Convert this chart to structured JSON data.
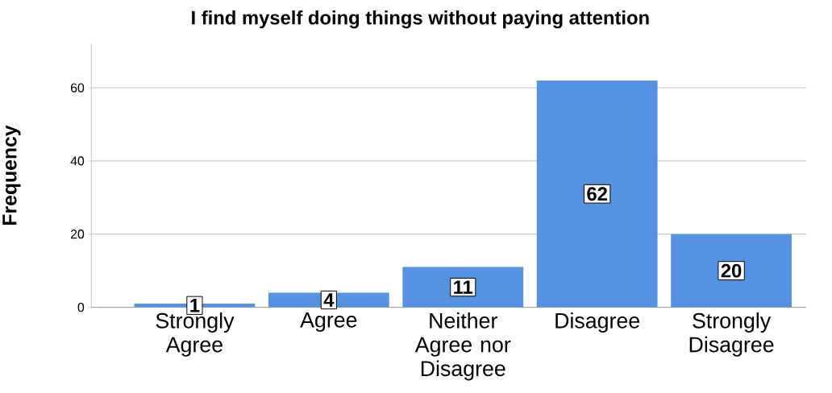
{
  "chart_data": {
    "type": "bar",
    "title": "I find myself doing things without paying attention",
    "ylabel": "Frequency",
    "categories": [
      "Strongly Agree",
      "Agree",
      "Neither Agree nor Disagree",
      "Disagree",
      "Strongly Disagree"
    ],
    "values": [
      1,
      4,
      11,
      62,
      20
    ],
    "color": "#5592e2",
    "ylim": [
      0,
      72
    ],
    "yticks": [
      0,
      20,
      40,
      60
    ],
    "grid": "y",
    "data_labels": true
  }
}
